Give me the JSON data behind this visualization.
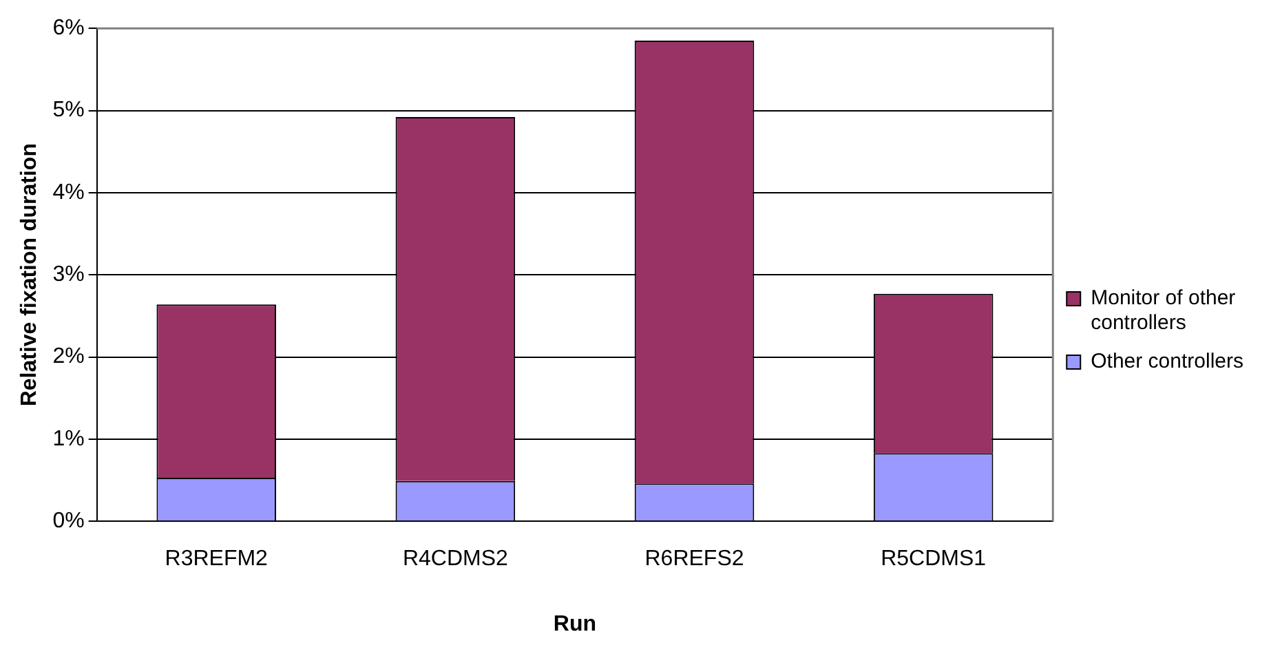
{
  "chart_data": {
    "type": "bar",
    "stacked": true,
    "xlabel": "Run",
    "ylabel": "Relative fixation duration",
    "categories": [
      "R3REFM2",
      "R4CDMS2",
      "R6REFS2",
      "R5CDMS1"
    ],
    "series": [
      {
        "name": "Other controllers",
        "color": "#9999ff",
        "values": [
          0.53,
          0.49,
          0.46,
          0.83
        ]
      },
      {
        "name": "Monitor of other controllers",
        "color": "#993366",
        "values": [
          2.11,
          4.43,
          5.39,
          1.94
        ]
      }
    ],
    "ylim": [
      0,
      6
    ],
    "yticks": [
      {
        "value": 0,
        "label": "0%"
      },
      {
        "value": 1,
        "label": "1%"
      },
      {
        "value": 2,
        "label": "2%"
      },
      {
        "value": 3,
        "label": "3%"
      },
      {
        "value": 4,
        "label": "4%"
      },
      {
        "value": 5,
        "label": "5%"
      },
      {
        "value": 6,
        "label": "6%"
      }
    ],
    "grid": "y",
    "legend": "right"
  }
}
